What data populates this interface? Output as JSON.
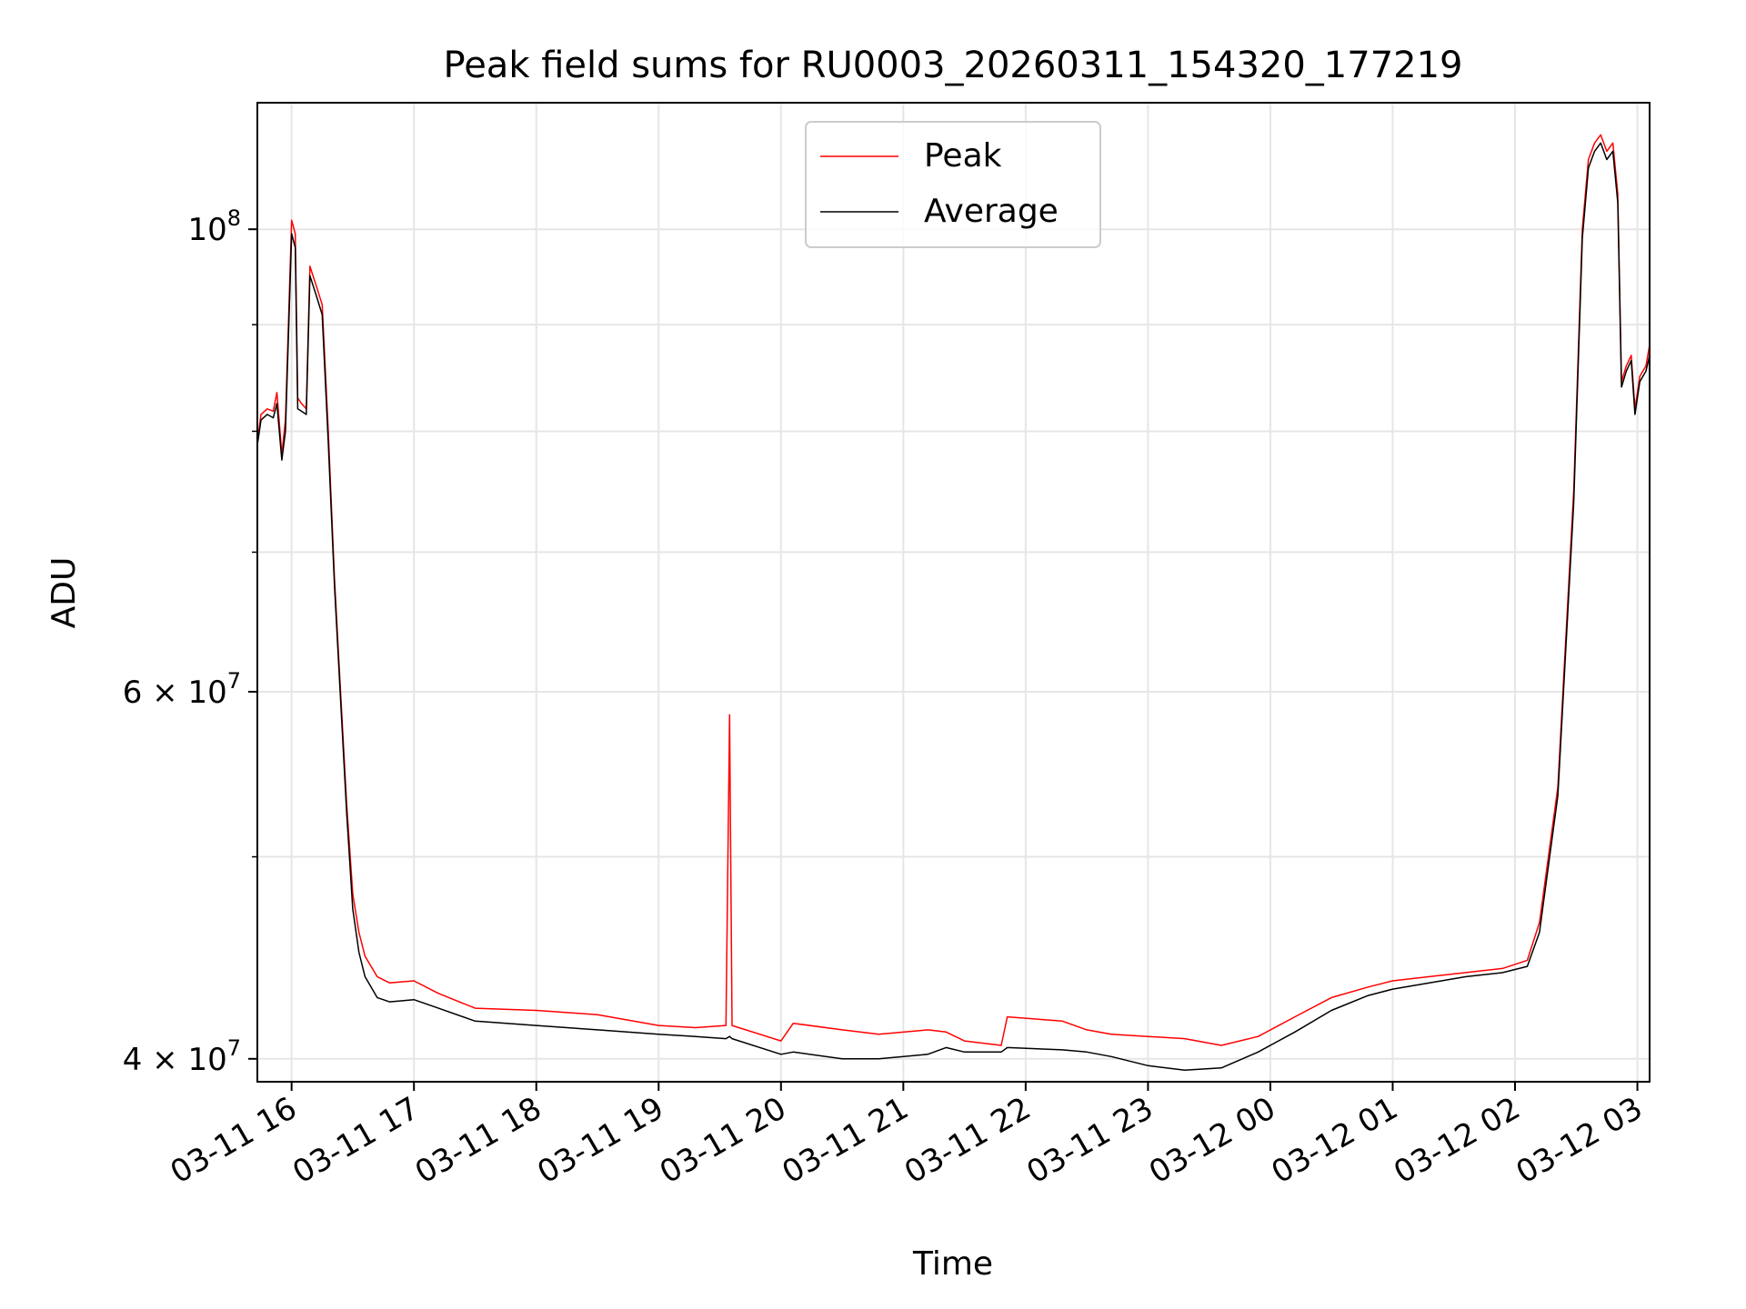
{
  "chart_data": {
    "type": "line",
    "title": "Peak field sums for RU0003_20260311_154320_177219",
    "xlabel": "Time",
    "ylabel": "ADU",
    "yscale": "log",
    "xlim_hours": [
      15.72,
      27.1
    ],
    "ylim": [
      39000000,
      115000000
    ],
    "grid": true,
    "legend_position": "upper-center",
    "x_ticks": [
      {
        "hour": 16,
        "label": "03-11 16"
      },
      {
        "hour": 17,
        "label": "03-11 17"
      },
      {
        "hour": 18,
        "label": "03-11 18"
      },
      {
        "hour": 19,
        "label": "03-11 19"
      },
      {
        "hour": 20,
        "label": "03-11 20"
      },
      {
        "hour": 21,
        "label": "03-11 21"
      },
      {
        "hour": 22,
        "label": "03-11 22"
      },
      {
        "hour": 23,
        "label": "03-11 23"
      },
      {
        "hour": 24,
        "label": "03-12 00"
      },
      {
        "hour": 25,
        "label": "03-12 01"
      },
      {
        "hour": 26,
        "label": "03-12 02"
      },
      {
        "hour": 27,
        "label": "03-12 03"
      }
    ],
    "y_ticks": [
      {
        "value": 100000000,
        "base": "10",
        "exp": "8",
        "mantissa": ""
      },
      {
        "value": 60000000,
        "base": "10",
        "exp": "7",
        "mantissa": "6"
      },
      {
        "value": 40000000,
        "base": "10",
        "exp": "7",
        "mantissa": "4"
      }
    ],
    "y_minor_ticks": [
      50000000,
      70000000,
      80000000,
      90000000
    ],
    "series": [
      {
        "name": "Peak",
        "color": "#ff0000",
        "points": [
          [
            15.72,
            79000000
          ],
          [
            15.75,
            81500000
          ],
          [
            15.8,
            82000000
          ],
          [
            15.85,
            81800000
          ],
          [
            15.88,
            83500000
          ],
          [
            15.92,
            78000000
          ],
          [
            15.95,
            81000000
          ],
          [
            16.0,
            101000000
          ],
          [
            16.03,
            99500000
          ],
          [
            16.05,
            83000000
          ],
          [
            16.08,
            82500000
          ],
          [
            16.12,
            82000000
          ],
          [
            16.15,
            96000000
          ],
          [
            16.2,
            94000000
          ],
          [
            16.25,
            92000000
          ],
          [
            16.3,
            80000000
          ],
          [
            16.35,
            68000000
          ],
          [
            16.4,
            60000000
          ],
          [
            16.45,
            53000000
          ],
          [
            16.5,
            48000000
          ],
          [
            16.55,
            46000000
          ],
          [
            16.6,
            44800000
          ],
          [
            16.7,
            43800000
          ],
          [
            16.8,
            43500000
          ],
          [
            17.0,
            43600000
          ],
          [
            17.2,
            43000000
          ],
          [
            17.5,
            42300000
          ],
          [
            18.0,
            42200000
          ],
          [
            18.5,
            42000000
          ],
          [
            19.0,
            41500000
          ],
          [
            19.3,
            41400000
          ],
          [
            19.55,
            41500000
          ],
          [
            19.58,
            58500000
          ],
          [
            19.6,
            41500000
          ],
          [
            20.0,
            40800000
          ],
          [
            20.1,
            41600000
          ],
          [
            20.5,
            41300000
          ],
          [
            20.8,
            41100000
          ],
          [
            21.2,
            41300000
          ],
          [
            21.35,
            41200000
          ],
          [
            21.5,
            40800000
          ],
          [
            21.8,
            40600000
          ],
          [
            21.85,
            41900000
          ],
          [
            22.3,
            41700000
          ],
          [
            22.5,
            41300000
          ],
          [
            22.7,
            41100000
          ],
          [
            23.0,
            41000000
          ],
          [
            23.3,
            40900000
          ],
          [
            23.6,
            40600000
          ],
          [
            23.9,
            41000000
          ],
          [
            24.2,
            41900000
          ],
          [
            24.5,
            42800000
          ],
          [
            24.8,
            43300000
          ],
          [
            25.0,
            43600000
          ],
          [
            25.3,
            43800000
          ],
          [
            25.6,
            44000000
          ],
          [
            25.9,
            44200000
          ],
          [
            26.1,
            44600000
          ],
          [
            26.2,
            46500000
          ],
          [
            26.35,
            54000000
          ],
          [
            26.48,
            75000000
          ],
          [
            26.55,
            100000000
          ],
          [
            26.6,
            108000000
          ],
          [
            26.65,
            110000000
          ],
          [
            26.7,
            111000000
          ],
          [
            26.75,
            109000000
          ],
          [
            26.8,
            110000000
          ],
          [
            26.84,
            104000000
          ],
          [
            26.87,
            84500000
          ],
          [
            26.91,
            86000000
          ],
          [
            26.95,
            87000000
          ],
          [
            26.98,
            82000000
          ],
          [
            27.02,
            85000000
          ],
          [
            27.07,
            86000000
          ],
          [
            27.1,
            88000000
          ]
        ]
      },
      {
        "name": "Average",
        "color": "#000000",
        "points": [
          [
            15.72,
            78800000
          ],
          [
            15.75,
            81000000
          ],
          [
            15.8,
            81500000
          ],
          [
            15.85,
            81200000
          ],
          [
            15.88,
            82500000
          ],
          [
            15.92,
            77500000
          ],
          [
            15.95,
            80000000
          ],
          [
            16.0,
            99500000
          ],
          [
            16.03,
            98000000
          ],
          [
            16.05,
            82000000
          ],
          [
            16.08,
            81800000
          ],
          [
            16.12,
            81500000
          ],
          [
            16.15,
            95000000
          ],
          [
            16.2,
            93000000
          ],
          [
            16.25,
            91000000
          ],
          [
            16.3,
            79000000
          ],
          [
            16.35,
            67500000
          ],
          [
            16.4,
            59500000
          ],
          [
            16.45,
            52500000
          ],
          [
            16.5,
            47200000
          ],
          [
            16.55,
            45000000
          ],
          [
            16.6,
            43800000
          ],
          [
            16.7,
            42800000
          ],
          [
            16.8,
            42600000
          ],
          [
            17.0,
            42700000
          ],
          [
            17.2,
            42300000
          ],
          [
            17.5,
            41700000
          ],
          [
            18.0,
            41500000
          ],
          [
            18.5,
            41300000
          ],
          [
            19.0,
            41100000
          ],
          [
            19.3,
            41000000
          ],
          [
            19.55,
            40900000
          ],
          [
            19.58,
            41000000
          ],
          [
            19.6,
            40900000
          ],
          [
            20.0,
            40200000
          ],
          [
            20.1,
            40300000
          ],
          [
            20.5,
            40000000
          ],
          [
            20.8,
            40000000
          ],
          [
            21.2,
            40200000
          ],
          [
            21.35,
            40500000
          ],
          [
            21.5,
            40300000
          ],
          [
            21.8,
            40300000
          ],
          [
            21.85,
            40500000
          ],
          [
            22.3,
            40400000
          ],
          [
            22.5,
            40300000
          ],
          [
            22.7,
            40100000
          ],
          [
            23.0,
            39700000
          ],
          [
            23.3,
            39500000
          ],
          [
            23.6,
            39600000
          ],
          [
            23.9,
            40300000
          ],
          [
            24.2,
            41200000
          ],
          [
            24.5,
            42200000
          ],
          [
            24.8,
            42900000
          ],
          [
            25.0,
            43200000
          ],
          [
            25.3,
            43500000
          ],
          [
            25.6,
            43800000
          ],
          [
            25.9,
            44000000
          ],
          [
            26.1,
            44300000
          ],
          [
            26.2,
            46000000
          ],
          [
            26.35,
            53500000
          ],
          [
            26.48,
            74000000
          ],
          [
            26.55,
            99000000
          ],
          [
            26.6,
            107000000
          ],
          [
            26.65,
            109000000
          ],
          [
            26.7,
            110000000
          ],
          [
            26.75,
            108000000
          ],
          [
            26.8,
            109000000
          ],
          [
            26.84,
            103000000
          ],
          [
            26.87,
            84000000
          ],
          [
            26.91,
            85500000
          ],
          [
            26.95,
            86500000
          ],
          [
            26.98,
            81500000
          ],
          [
            27.02,
            84500000
          ],
          [
            27.07,
            85500000
          ],
          [
            27.1,
            87000000
          ]
        ]
      }
    ]
  }
}
